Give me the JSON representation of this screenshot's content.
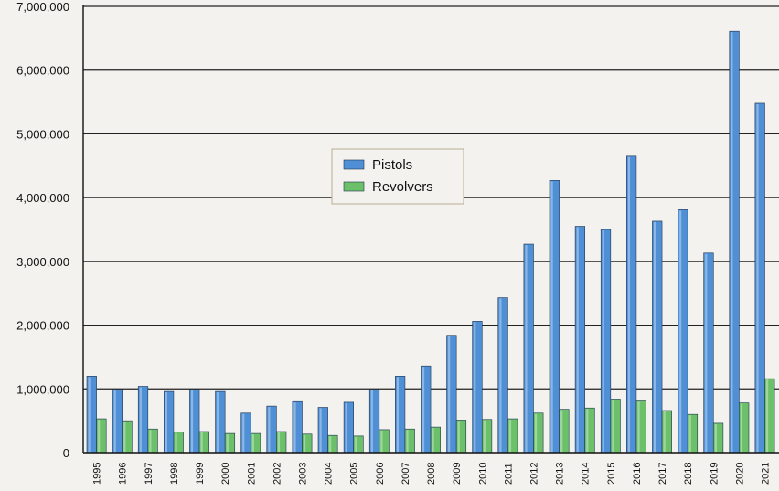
{
  "chart_data": {
    "type": "bar",
    "categories": [
      "1995",
      "1996",
      "1997",
      "1998",
      "1999",
      "2000",
      "2001",
      "2002",
      "2003",
      "2004",
      "2005",
      "2006",
      "2007",
      "2008",
      "2009",
      "2010",
      "2011",
      "2012",
      "2013",
      "2014",
      "2015",
      "2016",
      "2017",
      "2018",
      "2019",
      "2020",
      "2021"
    ],
    "series": [
      {
        "name": "Pistols",
        "color": "#4f8fd6",
        "values": [
          1200000,
          990000,
          1040000,
          960000,
          990000,
          960000,
          620000,
          730000,
          800000,
          710000,
          790000,
          990000,
          1200000,
          1360000,
          1840000,
          2060000,
          2430000,
          3270000,
          4270000,
          3550000,
          3500000,
          4650000,
          3630000,
          3810000,
          3130000,
          6610000,
          5480000
        ]
      },
      {
        "name": "Revolvers",
        "color": "#6cc069",
        "values": [
          530000,
          500000,
          370000,
          320000,
          330000,
          300000,
          300000,
          330000,
          290000,
          270000,
          260000,
          360000,
          370000,
          400000,
          510000,
          520000,
          530000,
          620000,
          680000,
          700000,
          840000,
          810000,
          660000,
          600000,
          460000,
          780000,
          1160000
        ]
      }
    ],
    "y_ticks": [
      "0",
      "1,000,000",
      "2,000,000",
      "3,000,000",
      "4,000,000",
      "5,000,000",
      "6,000,000",
      "7,000,000"
    ],
    "ylim": [
      0,
      7000000
    ],
    "grid": true,
    "legend_position": "center",
    "title": "",
    "xlabel": "",
    "ylabel": ""
  }
}
